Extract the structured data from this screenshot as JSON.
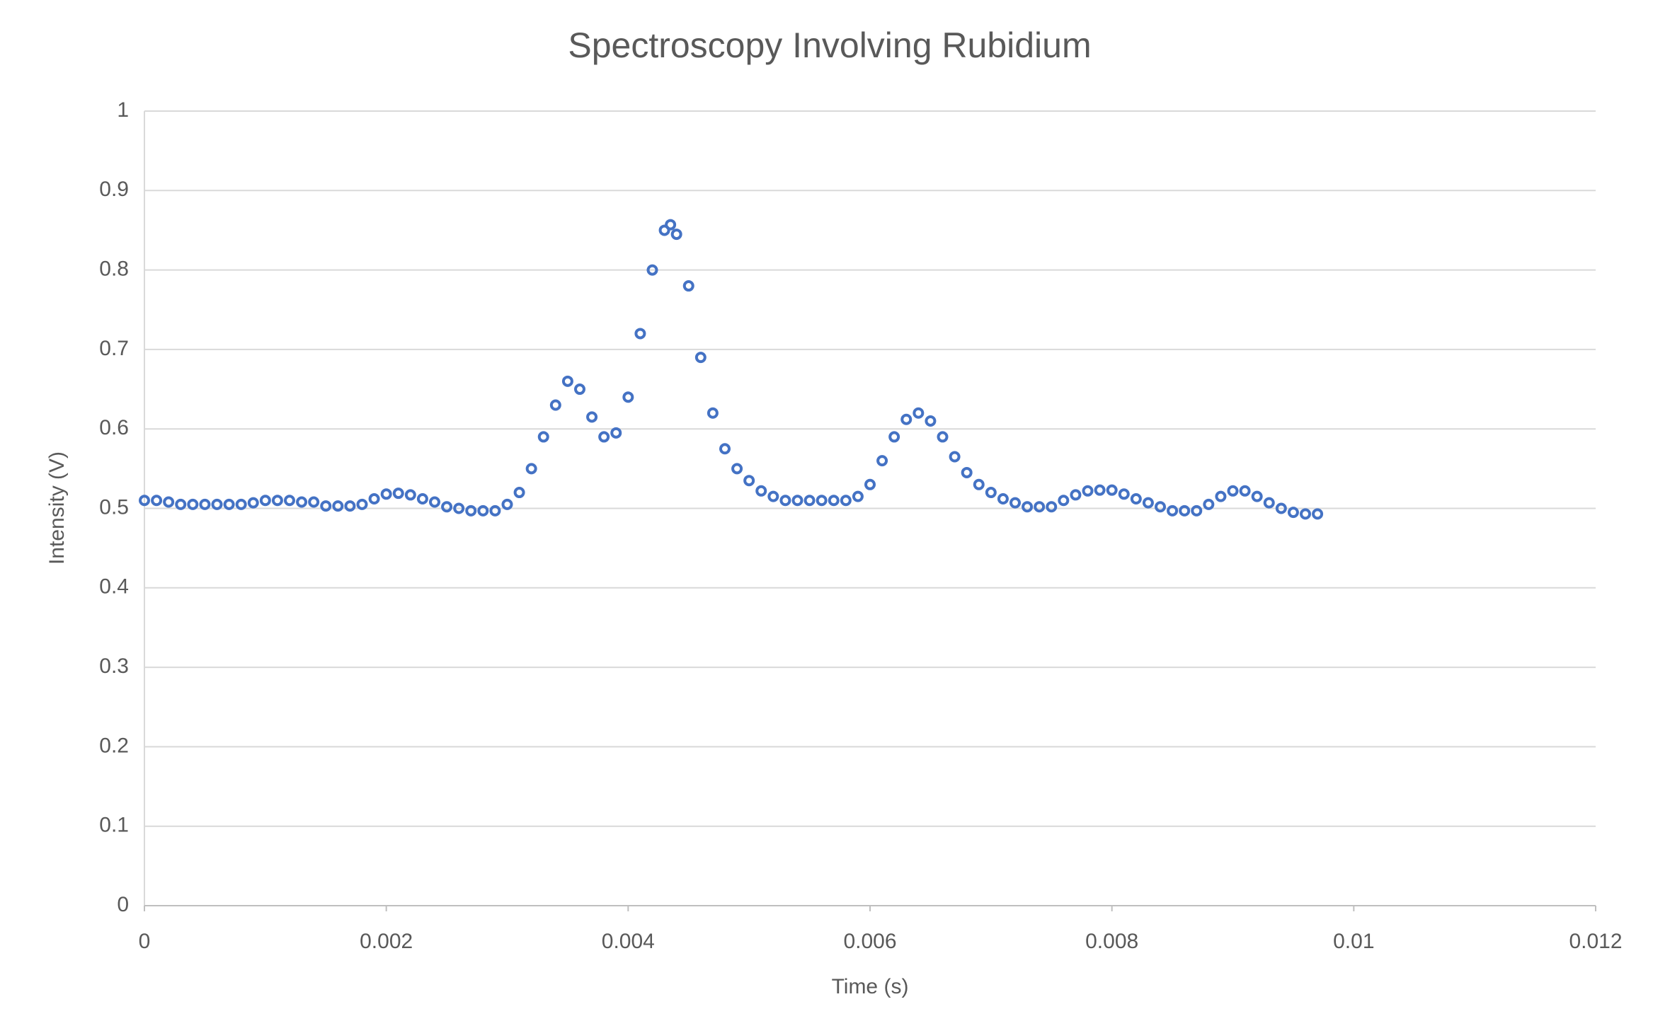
{
  "chart_data": {
    "type": "scatter",
    "title": "Spectroscopy Involving Rubidium",
    "x_label": "Time (s)",
    "y_label": "Intensity (V)",
    "series": [
      {
        "name": "Intensity",
        "color": "#4472c4",
        "x": [
          0,
          0.0001,
          0.0002,
          0.0003,
          0.0004,
          0.0005,
          0.0006,
          0.0007,
          0.0008,
          0.0009,
          0.001,
          0.0011,
          0.0012,
          0.0013,
          0.0014,
          0.0015,
          0.0016,
          0.0017,
          0.0018,
          0.0019,
          0.002,
          0.0021,
          0.0022,
          0.0023,
          0.0024,
          0.0025,
          0.0026,
          0.0027,
          0.0028,
          0.0029,
          0.003,
          0.0031,
          0.0032,
          0.0033,
          0.0034,
          0.0035,
          0.0036,
          0.0037,
          0.0038,
          0.0039,
          0.004,
          0.0041,
          0.0042,
          0.0043,
          0.00435,
          0.0044,
          0.0045,
          0.0046,
          0.0047,
          0.0048,
          0.0049,
          0.005,
          0.0051,
          0.0052,
          0.0053,
          0.0054,
          0.0055,
          0.0056,
          0.0057,
          0.0058,
          0.0059,
          0.006,
          0.0061,
          0.0062,
          0.0063,
          0.0064,
          0.0065,
          0.0066,
          0.0067,
          0.0068,
          0.0069,
          0.007,
          0.0071,
          0.0072,
          0.0073,
          0.0074,
          0.0075,
          0.0076,
          0.0077,
          0.0078,
          0.0079,
          0.008,
          0.0081,
          0.0082,
          0.0083,
          0.0084,
          0.0085,
          0.0086,
          0.0087,
          0.0088,
          0.0089,
          0.009,
          0.0091,
          0.0092,
          0.0093,
          0.0094,
          0.0095,
          0.0096,
          0.0097
        ],
        "values": [
          0.51,
          0.51,
          0.508,
          0.505,
          0.505,
          0.505,
          0.505,
          0.505,
          0.505,
          0.507,
          0.51,
          0.51,
          0.51,
          0.508,
          0.508,
          0.503,
          0.503,
          0.503,
          0.505,
          0.512,
          0.518,
          0.519,
          0.517,
          0.512,
          0.508,
          0.502,
          0.5,
          0.497,
          0.497,
          0.497,
          0.505,
          0.52,
          0.55,
          0.59,
          0.63,
          0.66,
          0.65,
          0.615,
          0.59,
          0.595,
          0.64,
          0.72,
          0.8,
          0.85,
          0.857,
          0.845,
          0.78,
          0.69,
          0.62,
          0.575,
          0.55,
          0.535,
          0.522,
          0.515,
          0.51,
          0.51,
          0.51,
          0.51,
          0.51,
          0.51,
          0.515,
          0.53,
          0.56,
          0.59,
          0.612,
          0.62,
          0.61,
          0.59,
          0.565,
          0.545,
          0.53,
          0.52,
          0.512,
          0.507,
          0.502,
          0.502,
          0.502,
          0.51,
          0.517,
          0.522,
          0.523,
          0.523,
          0.518,
          0.512,
          0.507,
          0.502,
          0.497,
          0.497,
          0.497,
          0.505,
          0.515,
          0.522,
          0.522,
          0.515,
          0.507,
          0.5,
          0.495,
          0.493,
          0.493
        ]
      }
    ],
    "xlim": [
      0,
      0.012
    ],
    "xticks": [
      0,
      0.002,
      0.004,
      0.006,
      0.008,
      0.01,
      0.012
    ],
    "ylim": [
      0,
      1
    ],
    "yticks": [
      0,
      0.1,
      0.2,
      0.3,
      0.4,
      0.5,
      0.6,
      0.7,
      0.8,
      0.9,
      1
    ],
    "grid": true
  }
}
